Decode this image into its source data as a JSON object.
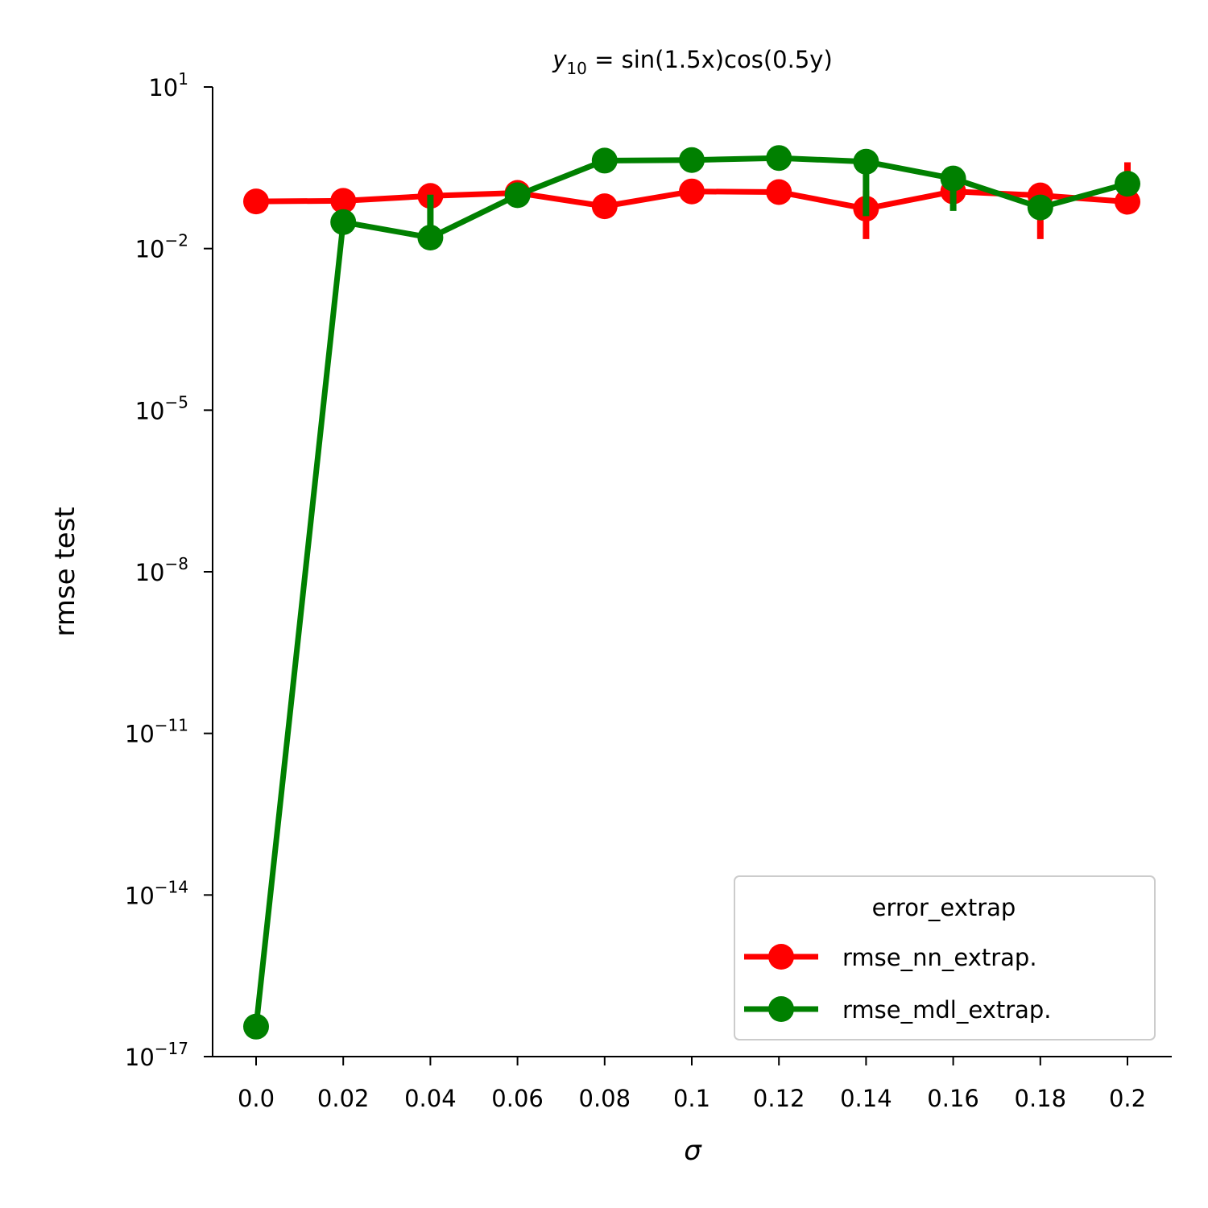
{
  "chart_data": {
    "type": "line",
    "title": {
      "base": "y",
      "sub": "10",
      "rest": " = sin(1.5x)cos(0.5y)"
    },
    "xlabel": "σ",
    "ylabel": "rmse test",
    "y_scale": "log",
    "ylim": [
      1e-17,
      10
    ],
    "categories": [
      "0.0",
      "0.02",
      "0.04",
      "0.06",
      "0.08",
      "0.1",
      "0.12",
      "0.14",
      "0.16",
      "0.18",
      "0.2"
    ],
    "y_ticks": [
      {
        "base": "10",
        "exp": "1",
        "value": 10
      },
      {
        "base": "10",
        "exp": "−2",
        "value": 0.01
      },
      {
        "base": "10",
        "exp": "−5",
        "value": 1e-05
      },
      {
        "base": "10",
        "exp": "−8",
        "value": 1e-08
      },
      {
        "base": "10",
        "exp": "−11",
        "value": 1e-11
      },
      {
        "base": "10",
        "exp": "−14",
        "value": 1e-14
      },
      {
        "base": "10",
        "exp": "−17",
        "value": 1e-17
      }
    ],
    "legend": {
      "title": "error_extrap",
      "placement": "lower-right"
    },
    "series": [
      {
        "name": "rmse_nn_extrap.",
        "color": "#ff0000",
        "values": [
          0.075,
          0.077,
          0.095,
          0.108,
          0.061,
          0.115,
          0.112,
          0.055,
          0.115,
          0.097,
          0.074
        ],
        "err_low": [
          0.073,
          0.075,
          0.09,
          0.104,
          0.058,
          0.105,
          0.105,
          0.015,
          0.1,
          0.015,
          0.045
        ],
        "err_high": [
          0.077,
          0.079,
          0.1,
          0.112,
          0.064,
          0.125,
          0.12,
          0.12,
          0.13,
          0.14,
          0.4
        ]
      },
      {
        "name": "rmse_mdl_extrap.",
        "color": "#008000",
        "values": [
          3.6e-17,
          0.031,
          0.016,
          0.098,
          0.43,
          0.44,
          0.48,
          0.41,
          0.2,
          0.058,
          0.16
        ],
        "err_low": [
          3.6e-17,
          0.028,
          0.013,
          0.095,
          0.42,
          0.43,
          0.47,
          0.04,
          0.05,
          0.05,
          0.1
        ],
        "err_high": [
          3.6e-17,
          0.034,
          0.1,
          0.101,
          0.44,
          0.45,
          0.49,
          0.42,
          0.3,
          0.066,
          0.22
        ]
      }
    ]
  }
}
